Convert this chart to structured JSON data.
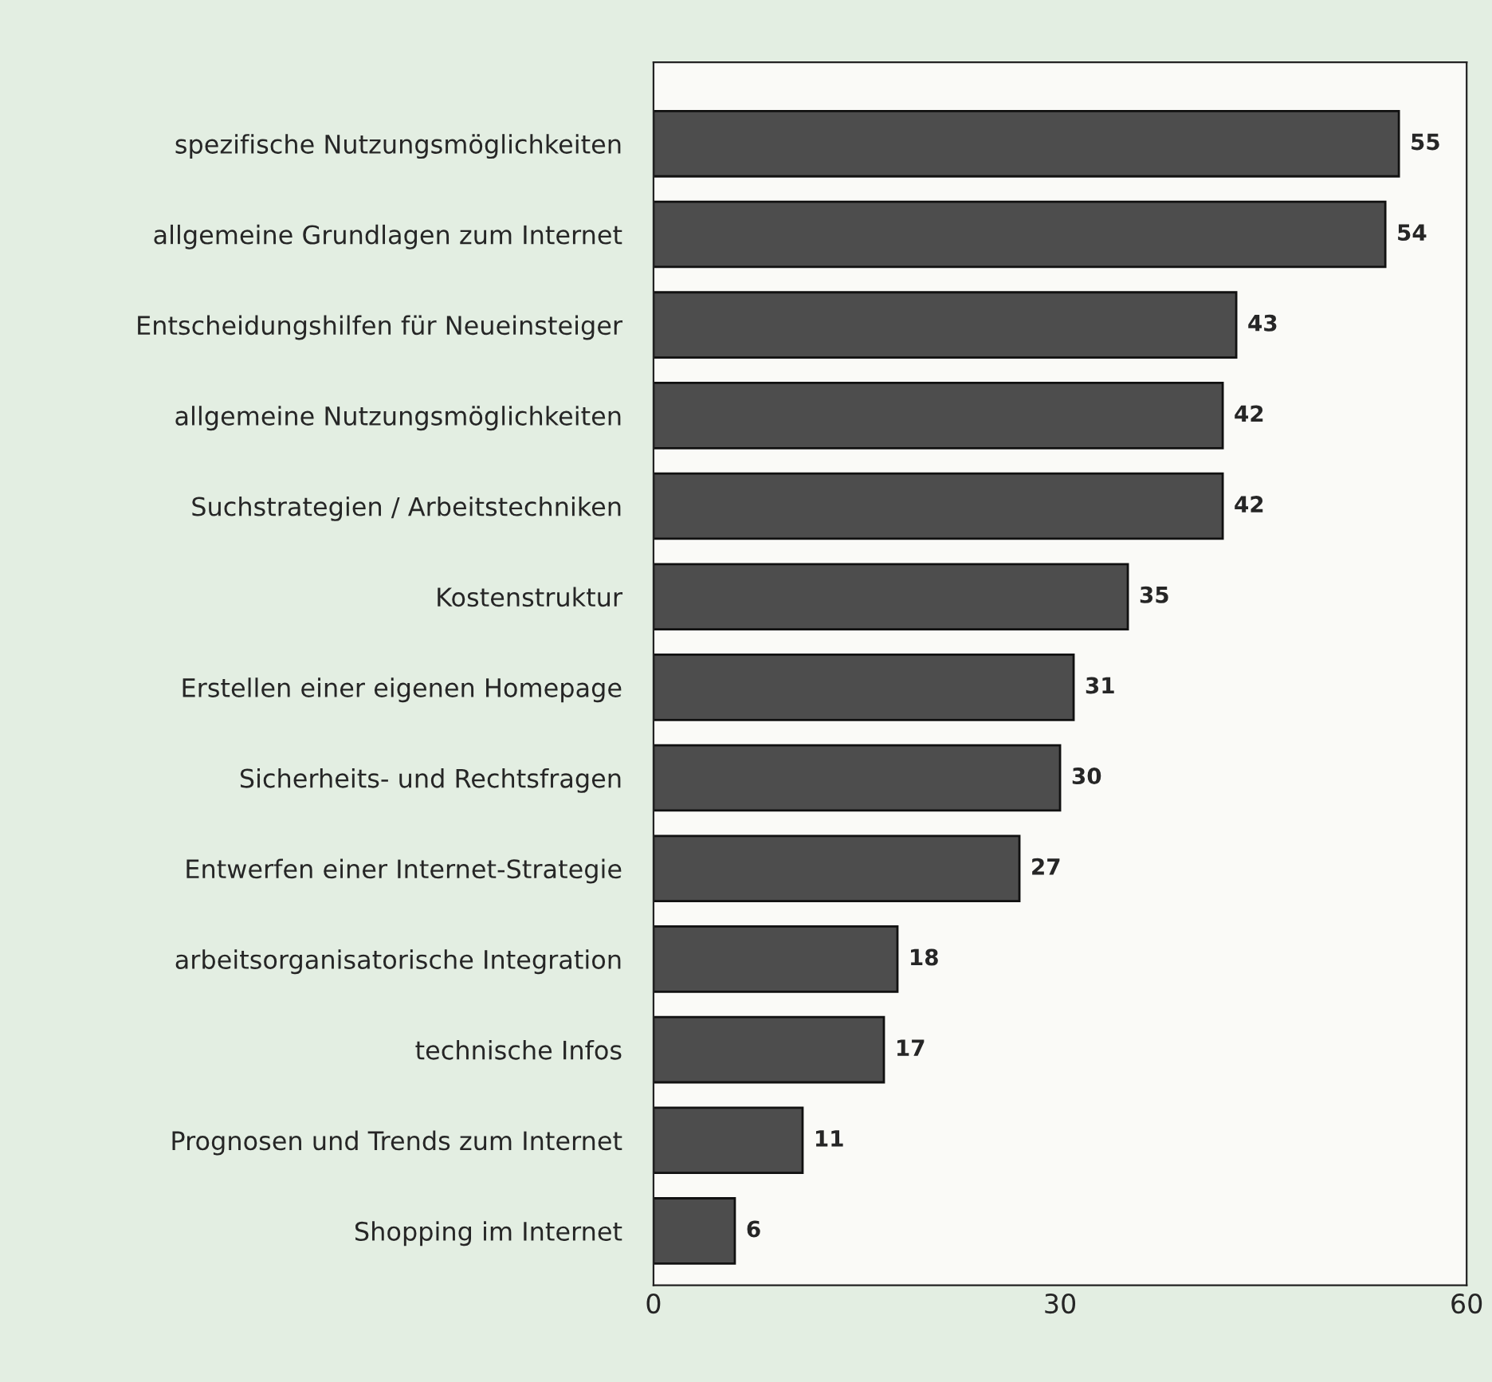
{
  "chart_data": {
    "type": "bar",
    "orientation": "horizontal",
    "categories": [
      "spezifische Nutzungsmöglichkeiten",
      "allgemeine Grundlagen zum Internet",
      "Entscheidungshilfen für Neueinsteiger",
      "allgemeine Nutzungsmöglichkeiten",
      "Suchstrategien / Arbeitstechniken",
      "Kostenstruktur",
      "Erstellen einer eigenen Homepage",
      "Sicherheits- und Rechtsfragen",
      "Entwerfen einer Internet-Strategie",
      "arbeitsorganisatorische Integration",
      "technische Infos",
      "Prognosen und Trends zum Internet",
      "Shopping im Internet"
    ],
    "values": [
      55,
      54,
      43,
      42,
      42,
      35,
      31,
      30,
      27,
      18,
      17,
      11,
      6
    ],
    "color": "#4d4d4d",
    "data_labels": true,
    "xlim": [
      0,
      60
    ],
    "xticks": [
      0,
      30,
      60
    ],
    "grid": false
  }
}
